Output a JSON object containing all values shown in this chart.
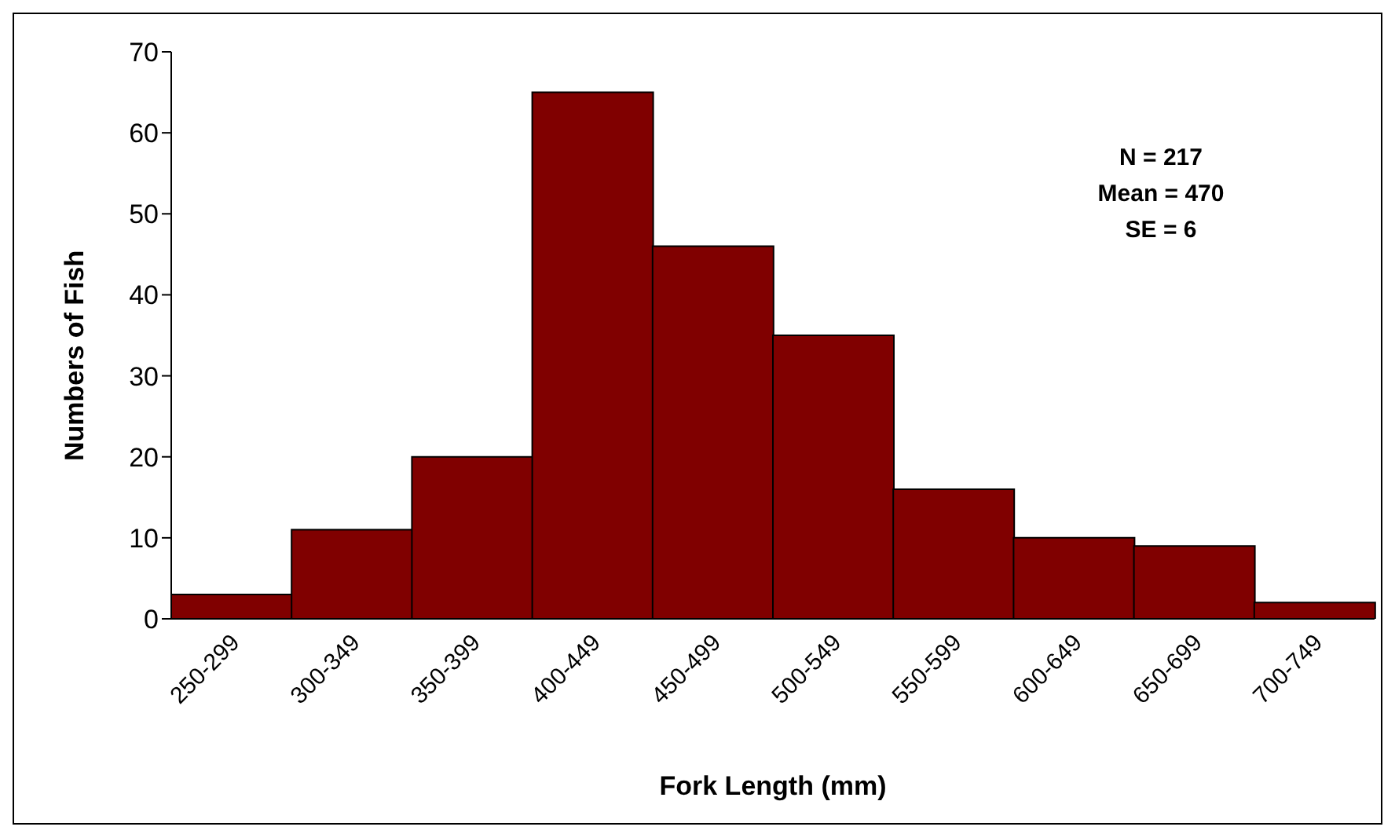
{
  "chart_data": {
    "type": "bar",
    "xlabel": "Fork Length (mm)",
    "ylabel": "Numbers of Fish",
    "categories": [
      "250-299",
      "300-349",
      "350-399",
      "400-449",
      "450-499",
      "500-549",
      "550-599",
      "600-649",
      "650-699",
      "700-749"
    ],
    "values": [
      3,
      11,
      20,
      65,
      46,
      35,
      16,
      10,
      9,
      2
    ],
    "color": "#800000",
    "ylim": [
      0,
      70
    ],
    "yticks": [
      0,
      10,
      20,
      30,
      40,
      50,
      60,
      70
    ],
    "grid": false,
    "legend": false,
    "annotations": [
      "N = 217",
      "Mean = 470",
      "SE = 6"
    ]
  }
}
